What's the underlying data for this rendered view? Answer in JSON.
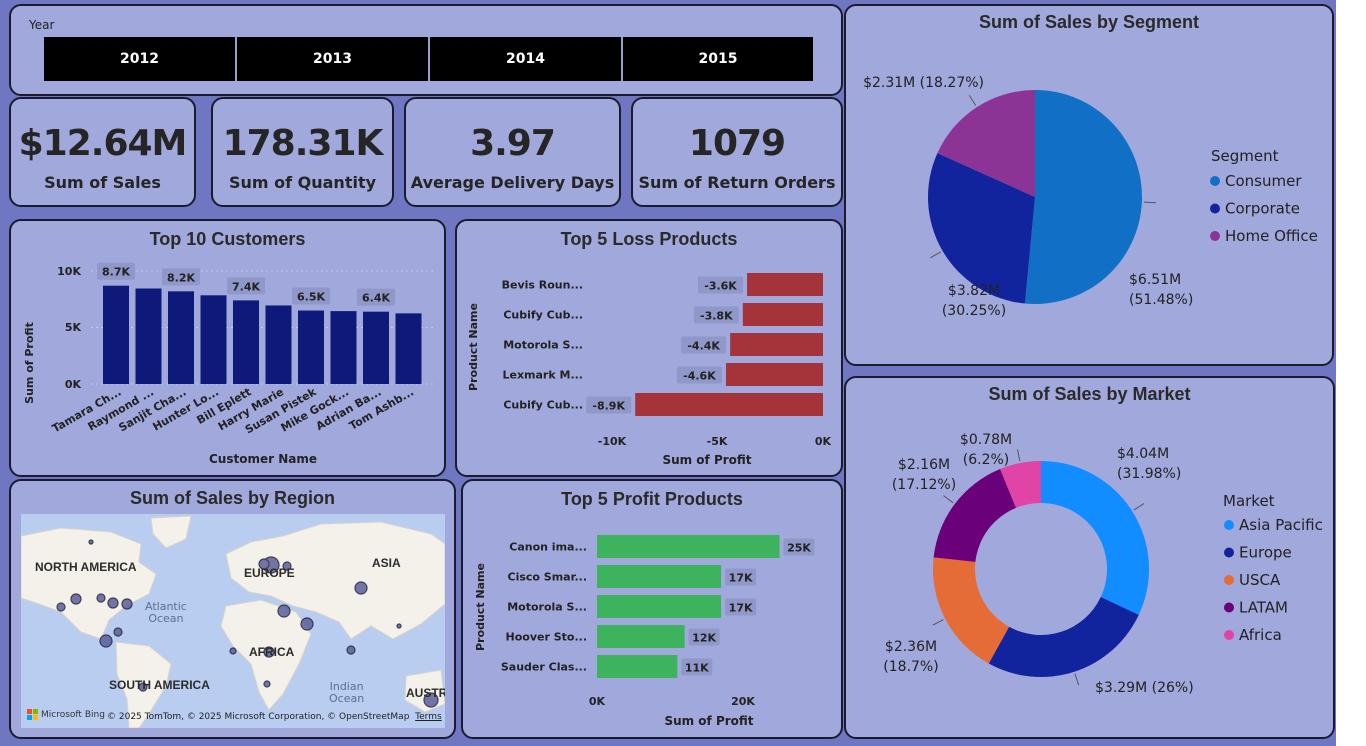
{
  "slicer": {
    "label": "Year",
    "years": [
      "2012",
      "2013",
      "2014",
      "2015"
    ]
  },
  "kpis": [
    {
      "value": "$12.64M",
      "label": "Sum of Sales"
    },
    {
      "value": "178.31K",
      "label": "Sum of Quantity"
    },
    {
      "value": "3.97",
      "label": "Average Delivery Days"
    },
    {
      "value": "1079",
      "label": "Sum of Return Orders"
    }
  ],
  "top_customers": {
    "title": "Top 10 Customers",
    "xlabel": "Customer Name",
    "ylabel": "Sum of Profit",
    "yticks": [
      "10K",
      "5K",
      "0K"
    ]
  },
  "loss_products": {
    "title": "Top 5 Loss Products",
    "xlabel": "Sum of Profit",
    "ylabel": "Product Name",
    "xticks": [
      "-10K",
      "-5K",
      "0K"
    ]
  },
  "profit_products": {
    "title": "Top 5 Profit Products",
    "xlabel": "Sum of Profit",
    "ylabel": "Product Name",
    "xticks": [
      "0K",
      "20K"
    ]
  },
  "region_map": {
    "title": "Sum of Sales by Region",
    "labels": {
      "north_america": "NORTH AMERICA",
      "europe": "EUROPE",
      "asia": "ASIA",
      "africa": "AFRICA",
      "south_america": "SOUTH AMERICA",
      "australia": "AUSTR"
    },
    "oceans": {
      "atlantic": "Atlantic\nOcean",
      "indian": "Indian\nOcean"
    },
    "bing": "Microsoft Bing",
    "attribution": "© 2025 TomTom, © 2025 Microsoft Corporation, © OpenStreetMap",
    "terms": "Terms"
  },
  "segment": {
    "title": "Sum of Sales by Segment",
    "legend_title": "Segment"
  },
  "market": {
    "title": "Sum of Sales by Market",
    "legend_title": "Market"
  },
  "chart_data": [
    {
      "type": "bar",
      "title": "Top 10 Customers",
      "xlabel": "Customer Name",
      "ylabel": "Sum of Profit",
      "ylim": [
        0,
        11000
      ],
      "categories": [
        "Tamara Ch...",
        "Raymond ...",
        "Sanjit Cha...",
        "Hunter Lo...",
        "Bill Eplett",
        "Harry Marie",
        "Susan Pistek",
        "Mike Gock...",
        "Adrian Ba...",
        "Tom Ashb..."
      ],
      "values": [
        8700,
        8450,
        8200,
        7850,
        7400,
        6950,
        6500,
        6450,
        6400,
        6250
      ],
      "data_labels": [
        "8.7K",
        "",
        "8.2K",
        "",
        "7.4K",
        "",
        "6.5K",
        "",
        "6.4K",
        ""
      ],
      "color": "#0d1a7a"
    },
    {
      "type": "bar",
      "orientation": "horizontal",
      "title": "Top 5 Loss Products",
      "xlabel": "Sum of Profit",
      "ylabel": "Product Name",
      "xlim": [
        -10500,
        0
      ],
      "categories": [
        "Bevis Roun...",
        "Cubify Cub...",
        "Motorola S...",
        "Lexmark M...",
        "Cubify Cub..."
      ],
      "values": [
        -3600,
        -3800,
        -4400,
        -4600,
        -8900
      ],
      "data_labels": [
        "-3.6K",
        "-3.8K",
        "-4.4K",
        "-4.6K",
        "-8.9K"
      ],
      "color": "#a4343a"
    },
    {
      "type": "bar",
      "orientation": "horizontal",
      "title": "Top 5 Profit Products",
      "xlabel": "Sum of Profit",
      "ylabel": "Product Name",
      "xlim": [
        0,
        30000
      ],
      "categories": [
        "Canon ima...",
        "Cisco Smar...",
        "Motorola S...",
        "Hoover Sto...",
        "Sauder Clas..."
      ],
      "values": [
        25000,
        17000,
        17000,
        12000,
        11000
      ],
      "data_labels": [
        "25K",
        "17K",
        "17K",
        "12K",
        "11K"
      ],
      "color": "#3db35e"
    },
    {
      "type": "pie",
      "title": "Sum of Sales by Segment",
      "legend_title": "Segment",
      "legend": "right",
      "series": [
        {
          "name": "Consumer",
          "value": 6.51,
          "label_top": "$6.51M",
          "label_bottom": "(51.48%)",
          "color": "#1170c5"
        },
        {
          "name": "Corporate",
          "value": 3.82,
          "label_top": "$3.82M",
          "label_bottom": "(30.25%)",
          "color": "#12239e"
        },
        {
          "name": "Home Office",
          "value": 2.31,
          "label_top": "$2.31M (18.27%)",
          "label_bottom": "",
          "color": "#8b3496"
        }
      ]
    },
    {
      "type": "pie",
      "variant": "donut",
      "title": "Sum of Sales by Market",
      "legend_title": "Market",
      "legend": "right",
      "series": [
        {
          "name": "Asia Pacific",
          "value": 4.04,
          "label_top": "$4.04M",
          "label_bottom": "(31.98%)",
          "color": "#118dff"
        },
        {
          "name": "Europe",
          "value": 3.29,
          "label_top": "$3.29M (26%)",
          "label_bottom": "",
          "color": "#12239e"
        },
        {
          "name": "USCA",
          "value": 2.36,
          "label_top": "$2.36M",
          "label_bottom": "(18.7%)",
          "color": "#e66c37"
        },
        {
          "name": "LATAM",
          "value": 2.16,
          "label_top": "$2.16M",
          "label_bottom": "(17.12%)",
          "color": "#6b007b"
        },
        {
          "name": "Africa",
          "value": 0.78,
          "label_top": "$0.78M",
          "label_bottom": "(6.2%)",
          "color": "#e044a7"
        }
      ]
    }
  ]
}
